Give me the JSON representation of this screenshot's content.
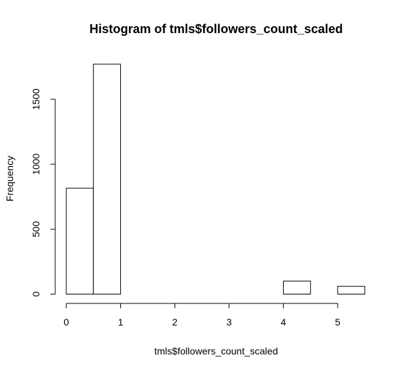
{
  "chart_data": {
    "type": "histogram",
    "title": "Histogram of tmls$followers_count_scaled",
    "xlabel": "tmls$followers_count_scaled",
    "ylabel": "Frequency",
    "bin_width": 0.5,
    "bins": [
      {
        "start": 0.0,
        "end": 0.5,
        "count": 815
      },
      {
        "start": 0.5,
        "end": 1.0,
        "count": 1770
      },
      {
        "start": 1.0,
        "end": 1.5,
        "count": 0
      },
      {
        "start": 1.5,
        "end": 2.0,
        "count": 0
      },
      {
        "start": 2.0,
        "end": 2.5,
        "count": 0
      },
      {
        "start": 2.5,
        "end": 3.0,
        "count": 0
      },
      {
        "start": 3.0,
        "end": 3.5,
        "count": 0
      },
      {
        "start": 3.5,
        "end": 4.0,
        "count": 0
      },
      {
        "start": 4.0,
        "end": 4.5,
        "count": 100
      },
      {
        "start": 4.5,
        "end": 5.0,
        "count": 0
      },
      {
        "start": 5.0,
        "end": 5.5,
        "count": 60
      }
    ],
    "xlim": [
      0,
      5.5
    ],
    "ylim": [
      0,
      1800
    ],
    "x_ticks": [
      0,
      1,
      2,
      3,
      4,
      5
    ],
    "y_ticks": [
      0,
      500,
      1000,
      1500
    ],
    "grid": false,
    "bar_fill": "#ffffff",
    "bar_stroke": "#000000"
  }
}
